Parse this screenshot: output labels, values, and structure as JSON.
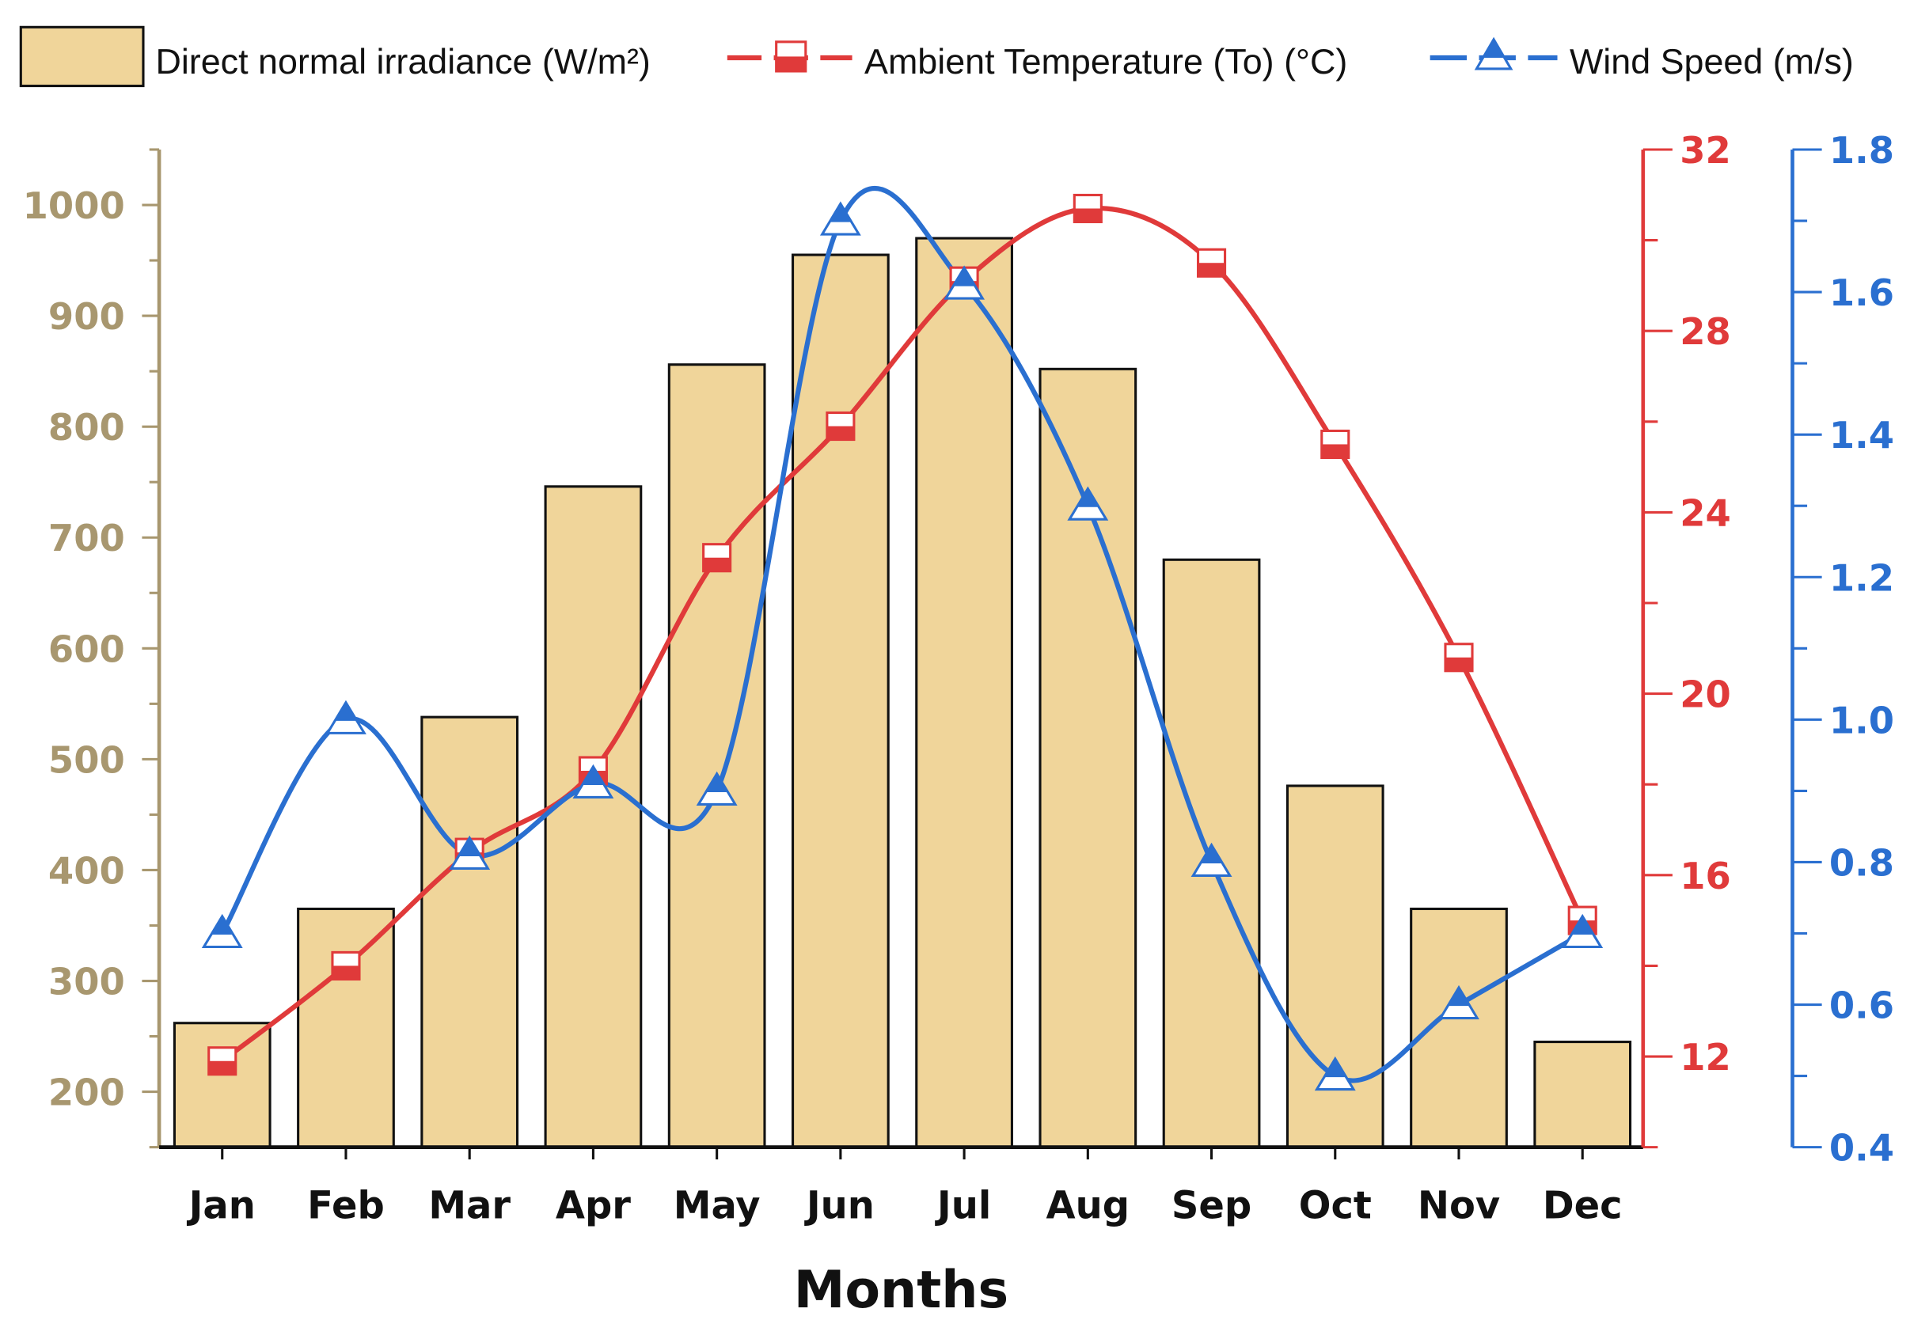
{
  "chart_data": {
    "type": "bar+line",
    "categories": [
      "Jan",
      "Feb",
      "Mar",
      "Apr",
      "May",
      "Jun",
      "Jul",
      "Aug",
      "Sep",
      "Oct",
      "Nov",
      "Dec"
    ],
    "xlabel": "Months",
    "series": [
      {
        "name": "Direct normal irradiance (W/m²)",
        "type": "bar",
        "axis": "left",
        "values": [
          262,
          365,
          538,
          746,
          856,
          955,
          970,
          852,
          680,
          476,
          365,
          245
        ]
      },
      {
        "name": "Ambient Temperature (To) (°C)",
        "type": "line",
        "axis": "right1",
        "values": [
          11.9,
          14.0,
          16.5,
          18.3,
          23.0,
          25.9,
          29.1,
          30.7,
          29.5,
          25.5,
          20.8,
          15.0
        ]
      },
      {
        "name": "Wind Speed (m/s)",
        "type": "line",
        "axis": "right2",
        "values": [
          0.7,
          1.0,
          0.81,
          0.91,
          0.9,
          1.7,
          1.61,
          1.3,
          0.8,
          0.5,
          0.6,
          0.7
        ]
      }
    ],
    "axes": {
      "left": {
        "ylim": [
          150,
          1050
        ],
        "ticks": [
          "200",
          "300",
          "400",
          "500",
          "600",
          "700",
          "800",
          "900",
          "1000"
        ],
        "color": "#a8976f"
      },
      "right1": {
        "ylim": [
          10,
          32
        ],
        "ticks": [
          "12",
          "16",
          "20",
          "24",
          "28",
          "32"
        ],
        "color": "#e03a3a"
      },
      "right2": {
        "ylim": [
          0.4,
          1.8
        ],
        "ticks": [
          "0.4",
          "0.6",
          "0.8",
          "1.0",
          "1.2",
          "1.4",
          "1.6",
          "1.8"
        ],
        "color": "#2a6fd0"
      }
    },
    "legend": {
      "placement": "top"
    },
    "grid": false
  }
}
